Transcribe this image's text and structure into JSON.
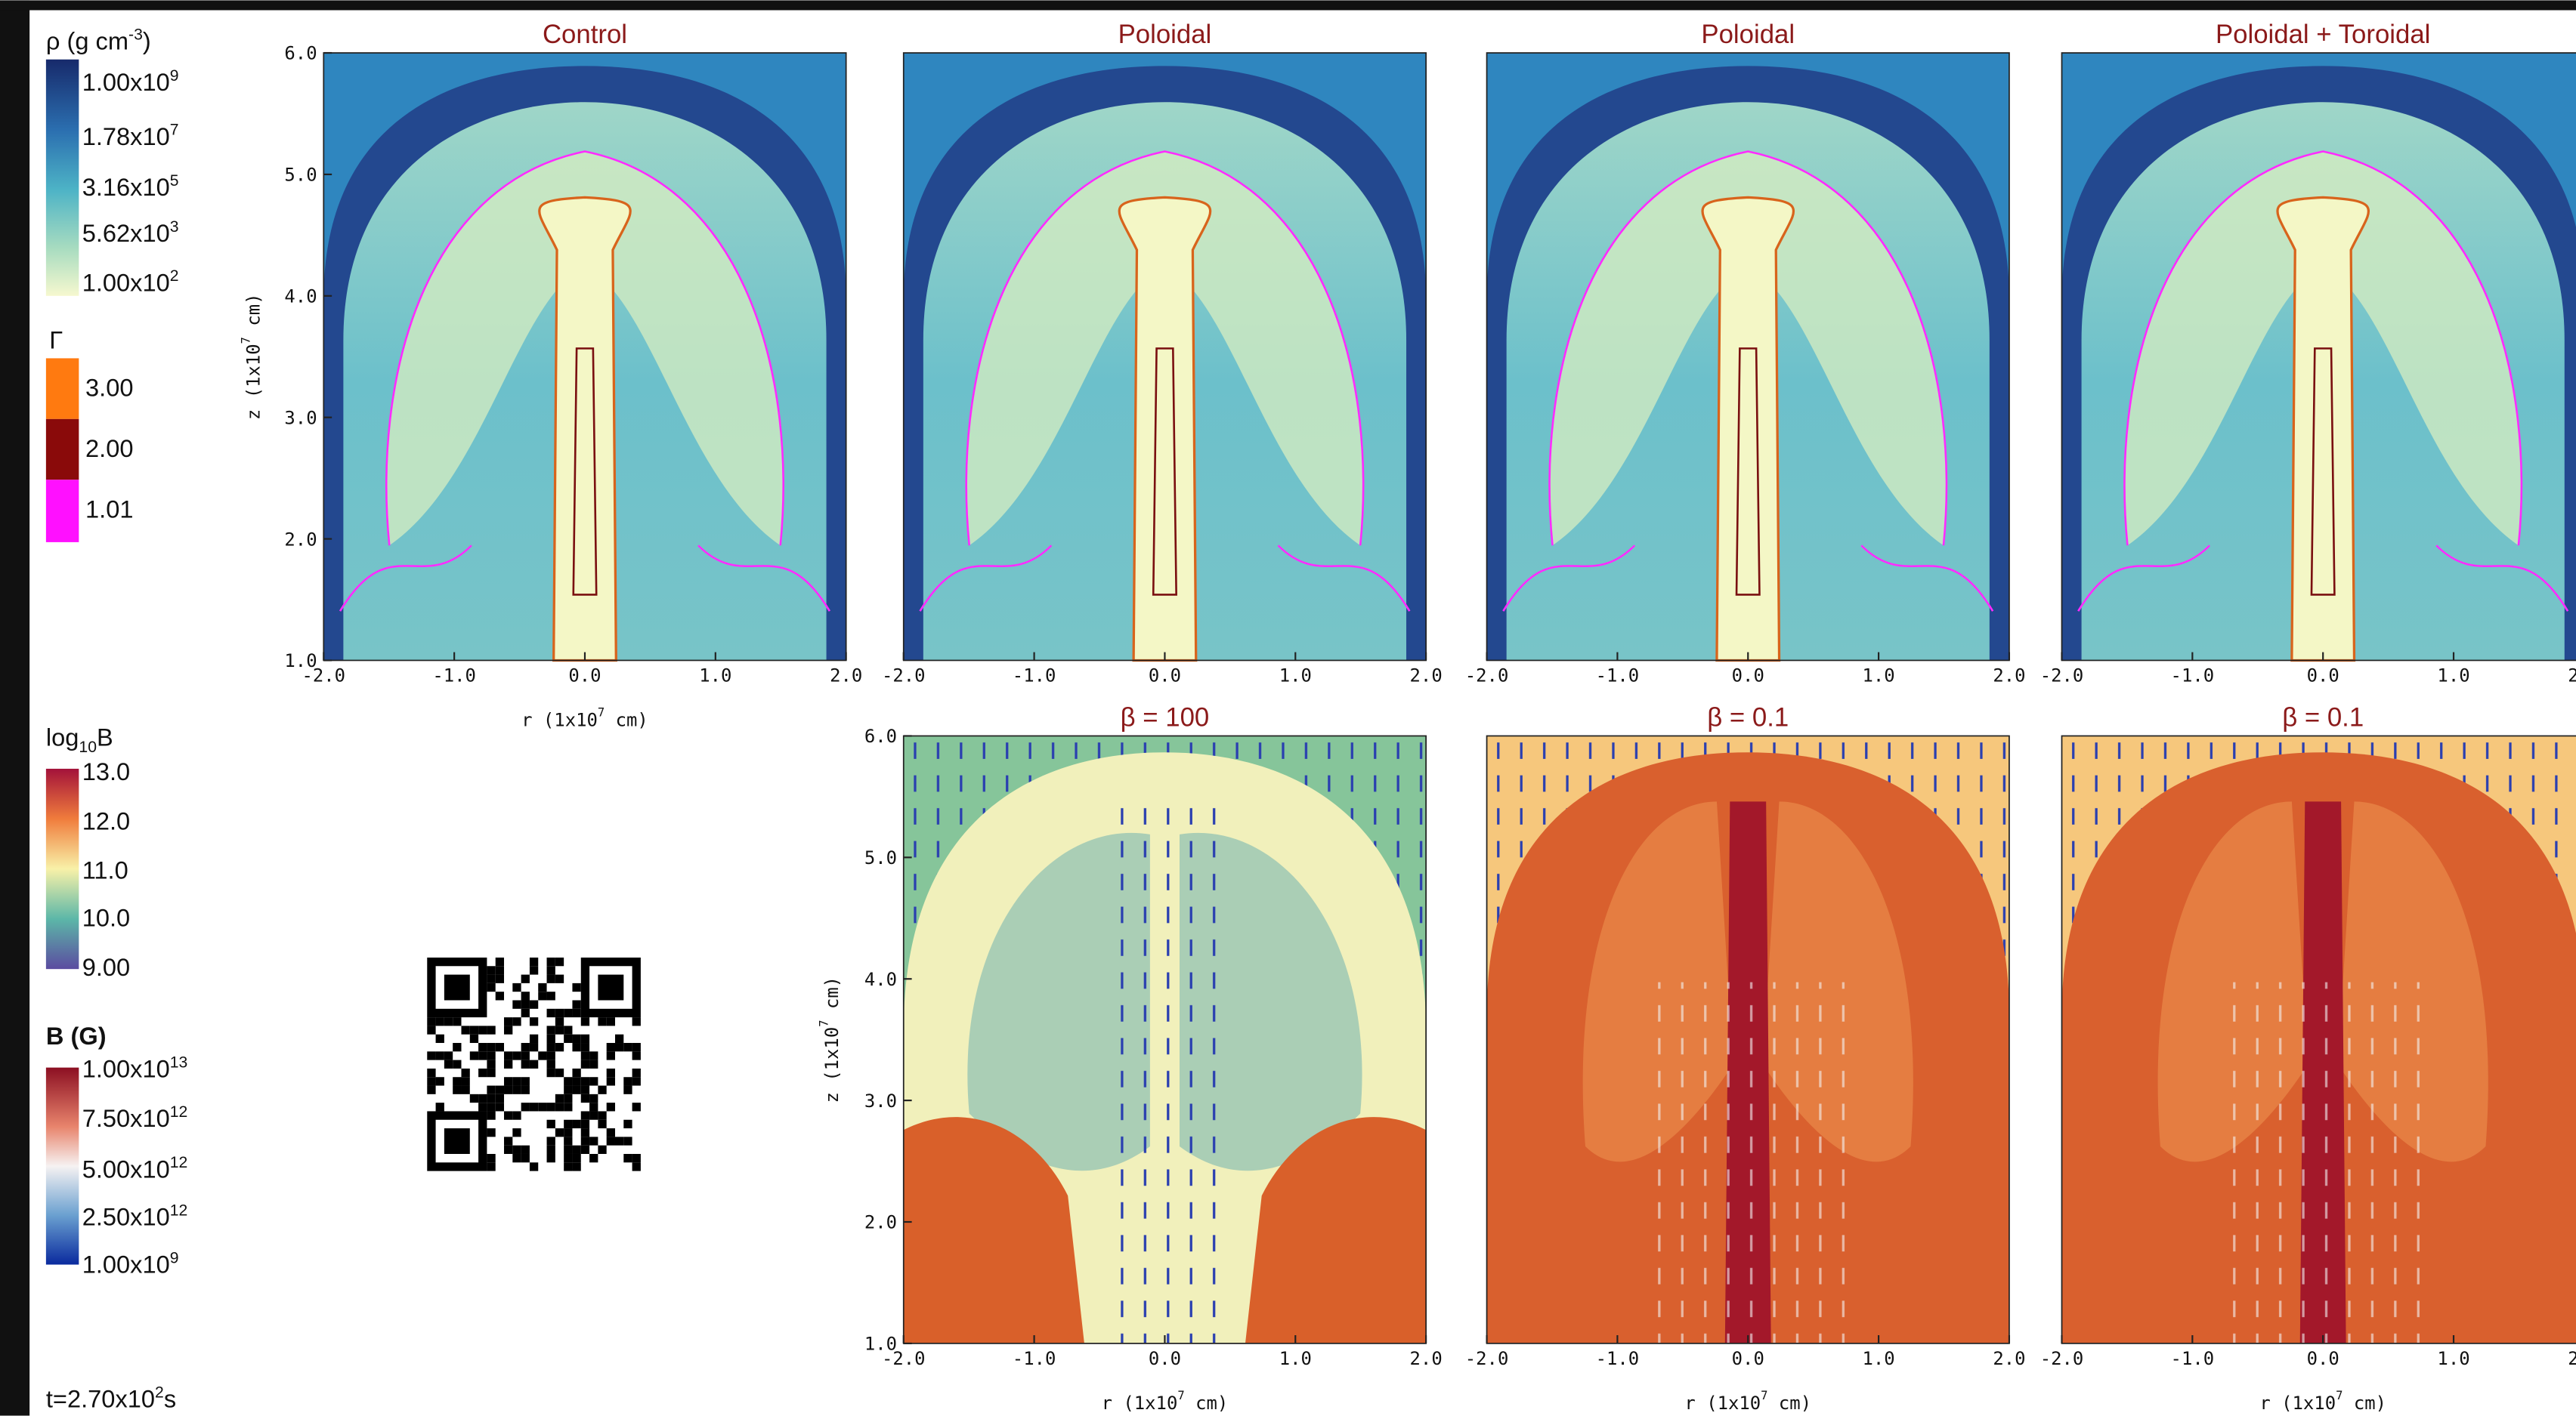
{
  "legends": {
    "density": {
      "title": {
        "pre": "ρ (g cm",
        "exp": "-3",
        "post": ")"
      },
      "labels": [
        {
          "pre": "1.00x10",
          "exp": "9"
        },
        {
          "pre": "1.78x10",
          "exp": "7"
        },
        {
          "pre": "3.16x10",
          "exp": "5"
        },
        {
          "pre": "5.62x10",
          "exp": "3"
        },
        {
          "pre": "1.00x10",
          "exp": "2"
        }
      ]
    },
    "gamma": {
      "title": "Γ",
      "labels": [
        "3.00",
        "2.00",
        "1.01"
      ]
    },
    "log_b": {
      "title": {
        "pre": "log",
        "sub": "10",
        "post": "B"
      },
      "labels": [
        "13.0",
        "12.0",
        "11.0",
        "10.0",
        "9.00"
      ]
    },
    "b_field": {
      "title": "B (G)",
      "labels": [
        {
          "pre": "1.00x10",
          "exp": "13"
        },
        {
          "pre": "7.50x10",
          "exp": "12"
        },
        {
          "pre": "5.00x10",
          "exp": "12"
        },
        {
          "pre": "2.50x10",
          "exp": "12"
        },
        {
          "pre": "1.00x10",
          "exp": "9"
        }
      ]
    }
  },
  "top_row": {
    "titles": [
      "Control",
      "Poloidal",
      "Poloidal",
      "Poloidal + Toroidal"
    ]
  },
  "bottom_row": {
    "titles": [
      "β = 100",
      "β = 0.1",
      "β = 0.1"
    ]
  },
  "axes": {
    "x_ticks": [
      "-2.0",
      "-1.0",
      "0.0",
      "1.0",
      "2.0"
    ],
    "y_ticks": [
      "6.0",
      "5.0",
      "4.0",
      "3.0",
      "2.0",
      "1.0"
    ],
    "x_label": {
      "pre": "r (1x10",
      "exp": "7",
      "post": " cm)"
    },
    "y_label": {
      "pre": "z (1x10",
      "exp": "7",
      "post": " cm)"
    }
  },
  "time": {
    "pre": "t=2.70x10",
    "exp": "2",
    "post": "s"
  }
}
